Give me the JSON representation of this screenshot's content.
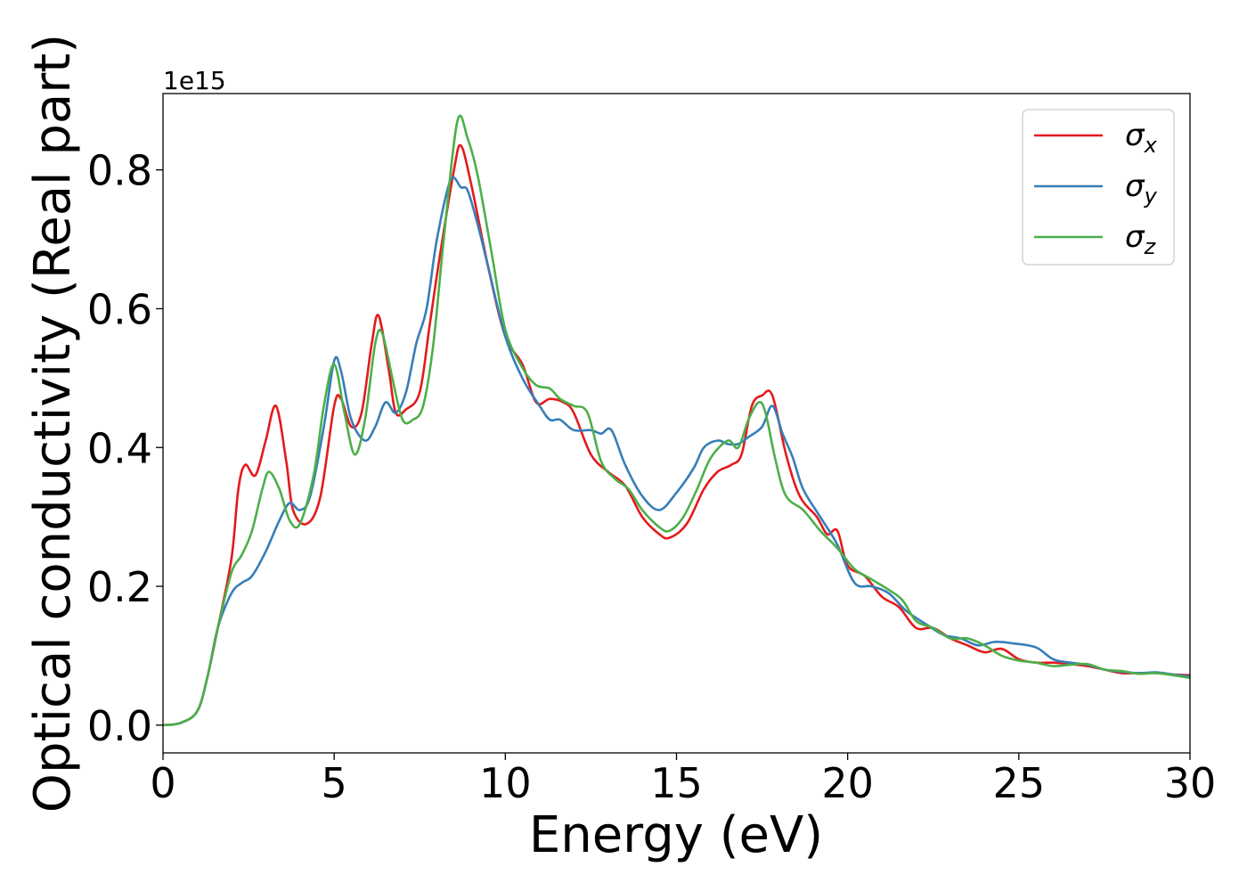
{
  "chart_data": {
    "type": "line",
    "xlabel": "Energy (eV)",
    "ylabel": "Optical conductivity (Real part)",
    "y_offset_label": "1e15",
    "xlim": [
      0,
      30
    ],
    "ylim": [
      -0.04,
      0.91
    ],
    "x_ticks": [
      0,
      5,
      10,
      15,
      20,
      25,
      30
    ],
    "x_tick_labels": [
      "0",
      "5",
      "10",
      "15",
      "20",
      "25",
      "30"
    ],
    "y_ticks": [
      0.0,
      0.2,
      0.4,
      0.6,
      0.8
    ],
    "y_tick_labels": [
      "0.0",
      "0.2",
      "0.4",
      "0.6",
      "0.8"
    ],
    "grid": false,
    "legend_position": "top-right",
    "series": [
      {
        "name": "σx",
        "name_base": "σ",
        "name_sub": "x",
        "color": "#e41a1c",
        "points": [
          [
            0,
            0
          ],
          [
            0.5,
            0.003
          ],
          [
            1,
            0.02
          ],
          [
            1.3,
            0.07
          ],
          [
            1.6,
            0.14
          ],
          [
            2,
            0.24
          ],
          [
            2.2,
            0.34
          ],
          [
            2.4,
            0.375
          ],
          [
            2.7,
            0.36
          ],
          [
            3,
            0.41
          ],
          [
            3.3,
            0.46
          ],
          [
            3.6,
            0.38
          ],
          [
            3.8,
            0.31
          ],
          [
            4.2,
            0.29
          ],
          [
            4.6,
            0.33
          ],
          [
            5,
            0.46
          ],
          [
            5.2,
            0.47
          ],
          [
            5.5,
            0.43
          ],
          [
            5.8,
            0.45
          ],
          [
            6.1,
            0.55
          ],
          [
            6.3,
            0.59
          ],
          [
            6.6,
            0.51
          ],
          [
            6.8,
            0.45
          ],
          [
            7.1,
            0.455
          ],
          [
            7.5,
            0.48
          ],
          [
            7.8,
            0.58
          ],
          [
            8.1,
            0.68
          ],
          [
            8.5,
            0.8
          ],
          [
            8.7,
            0.835
          ],
          [
            9,
            0.78
          ],
          [
            9.5,
            0.66
          ],
          [
            10,
            0.56
          ],
          [
            10.5,
            0.52
          ],
          [
            10.9,
            0.465
          ],
          [
            11.3,
            0.47
          ],
          [
            11.7,
            0.465
          ],
          [
            12,
            0.45
          ],
          [
            12.5,
            0.39
          ],
          [
            13,
            0.365
          ],
          [
            13.5,
            0.345
          ],
          [
            14,
            0.3
          ],
          [
            14.5,
            0.275
          ],
          [
            14.8,
            0.27
          ],
          [
            15.3,
            0.29
          ],
          [
            15.8,
            0.34
          ],
          [
            16.2,
            0.365
          ],
          [
            16.6,
            0.375
          ],
          [
            16.9,
            0.39
          ],
          [
            17.2,
            0.46
          ],
          [
            17.5,
            0.475
          ],
          [
            17.8,
            0.475
          ],
          [
            18.2,
            0.39
          ],
          [
            18.6,
            0.33
          ],
          [
            19.1,
            0.3
          ],
          [
            19.4,
            0.275
          ],
          [
            19.7,
            0.28
          ],
          [
            20,
            0.23
          ],
          [
            20.5,
            0.215
          ],
          [
            21,
            0.185
          ],
          [
            21.5,
            0.17
          ],
          [
            22,
            0.14
          ],
          [
            22.5,
            0.14
          ],
          [
            23,
            0.125
          ],
          [
            23.5,
            0.115
          ],
          [
            24,
            0.105
          ],
          [
            24.5,
            0.11
          ],
          [
            25,
            0.095
          ],
          [
            25.5,
            0.09
          ],
          [
            26,
            0.09
          ],
          [
            26.5,
            0.088
          ],
          [
            27,
            0.085
          ],
          [
            27.5,
            0.08
          ],
          [
            28,
            0.075
          ],
          [
            28.5,
            0.075
          ],
          [
            29,
            0.075
          ],
          [
            29.5,
            0.073
          ],
          [
            30,
            0.072
          ]
        ]
      },
      {
        "name": "σy",
        "name_base": "σ",
        "name_sub": "y",
        "color": "#377eb8",
        "points": [
          [
            0,
            0
          ],
          [
            0.5,
            0.003
          ],
          [
            1,
            0.02
          ],
          [
            1.3,
            0.07
          ],
          [
            1.6,
            0.14
          ],
          [
            2,
            0.19
          ],
          [
            2.3,
            0.205
          ],
          [
            2.6,
            0.215
          ],
          [
            3,
            0.25
          ],
          [
            3.4,
            0.295
          ],
          [
            3.7,
            0.32
          ],
          [
            4,
            0.31
          ],
          [
            4.3,
            0.33
          ],
          [
            4.7,
            0.43
          ],
          [
            5,
            0.525
          ],
          [
            5.2,
            0.51
          ],
          [
            5.5,
            0.44
          ],
          [
            5.9,
            0.41
          ],
          [
            6.2,
            0.43
          ],
          [
            6.5,
            0.465
          ],
          [
            6.8,
            0.45
          ],
          [
            7.1,
            0.48
          ],
          [
            7.4,
            0.55
          ],
          [
            7.7,
            0.6
          ],
          [
            8,
            0.7
          ],
          [
            8.4,
            0.785
          ],
          [
            8.7,
            0.775
          ],
          [
            8.9,
            0.77
          ],
          [
            9.2,
            0.72
          ],
          [
            9.5,
            0.66
          ],
          [
            10,
            0.56
          ],
          [
            10.5,
            0.5
          ],
          [
            11,
            0.46
          ],
          [
            11.3,
            0.44
          ],
          [
            11.6,
            0.44
          ],
          [
            12,
            0.425
          ],
          [
            12.5,
            0.425
          ],
          [
            12.8,
            0.42
          ],
          [
            13.1,
            0.425
          ],
          [
            13.5,
            0.375
          ],
          [
            14,
            0.33
          ],
          [
            14.5,
            0.31
          ],
          [
            15,
            0.335
          ],
          [
            15.5,
            0.37
          ],
          [
            15.8,
            0.4
          ],
          [
            16.2,
            0.41
          ],
          [
            16.5,
            0.405
          ],
          [
            16.8,
            0.405
          ],
          [
            17.1,
            0.415
          ],
          [
            17.5,
            0.43
          ],
          [
            17.8,
            0.46
          ],
          [
            18.1,
            0.42
          ],
          [
            18.4,
            0.385
          ],
          [
            18.7,
            0.34
          ],
          [
            19.2,
            0.3
          ],
          [
            19.7,
            0.26
          ],
          [
            20.2,
            0.205
          ],
          [
            20.7,
            0.2
          ],
          [
            21.2,
            0.19
          ],
          [
            21.7,
            0.165
          ],
          [
            22.3,
            0.145
          ],
          [
            22.8,
            0.13
          ],
          [
            23.3,
            0.125
          ],
          [
            23.8,
            0.115
          ],
          [
            24.3,
            0.12
          ],
          [
            24.8,
            0.118
          ],
          [
            25.5,
            0.112
          ],
          [
            26,
            0.095
          ],
          [
            26.5,
            0.09
          ],
          [
            27,
            0.087
          ],
          [
            27.5,
            0.08
          ],
          [
            28,
            0.077
          ],
          [
            28.5,
            0.075
          ],
          [
            29,
            0.076
          ],
          [
            29.5,
            0.073
          ],
          [
            30,
            0.07
          ]
        ]
      },
      {
        "name": "σz",
        "name_base": "σ",
        "name_sub": "z",
        "color": "#4daf4a",
        "points": [
          [
            0,
            0
          ],
          [
            0.5,
            0.003
          ],
          [
            1,
            0.02
          ],
          [
            1.3,
            0.07
          ],
          [
            1.6,
            0.14
          ],
          [
            2,
            0.22
          ],
          [
            2.3,
            0.245
          ],
          [
            2.6,
            0.28
          ],
          [
            2.9,
            0.34
          ],
          [
            3.1,
            0.365
          ],
          [
            3.4,
            0.34
          ],
          [
            3.7,
            0.295
          ],
          [
            4,
            0.29
          ],
          [
            4.4,
            0.36
          ],
          [
            4.7,
            0.46
          ],
          [
            5,
            0.52
          ],
          [
            5.3,
            0.45
          ],
          [
            5.6,
            0.39
          ],
          [
            5.9,
            0.44
          ],
          [
            6.2,
            0.55
          ],
          [
            6.4,
            0.565
          ],
          [
            6.7,
            0.5
          ],
          [
            7,
            0.44
          ],
          [
            7.3,
            0.44
          ],
          [
            7.6,
            0.46
          ],
          [
            7.9,
            0.55
          ],
          [
            8.2,
            0.7
          ],
          [
            8.6,
            0.87
          ],
          [
            8.9,
            0.845
          ],
          [
            9.2,
            0.79
          ],
          [
            9.6,
            0.68
          ],
          [
            10,
            0.57
          ],
          [
            10.5,
            0.515
          ],
          [
            10.9,
            0.49
          ],
          [
            11.3,
            0.485
          ],
          [
            11.6,
            0.47
          ],
          [
            12,
            0.46
          ],
          [
            12.4,
            0.45
          ],
          [
            12.8,
            0.38
          ],
          [
            13.2,
            0.355
          ],
          [
            13.6,
            0.34
          ],
          [
            14,
            0.31
          ],
          [
            14.5,
            0.285
          ],
          [
            14.8,
            0.28
          ],
          [
            15.2,
            0.3
          ],
          [
            15.6,
            0.34
          ],
          [
            16,
            0.385
          ],
          [
            16.5,
            0.41
          ],
          [
            16.8,
            0.4
          ],
          [
            17.1,
            0.44
          ],
          [
            17.4,
            0.465
          ],
          [
            17.6,
            0.45
          ],
          [
            17.9,
            0.38
          ],
          [
            18.2,
            0.33
          ],
          [
            18.7,
            0.31
          ],
          [
            19.2,
            0.28
          ],
          [
            19.7,
            0.255
          ],
          [
            20.2,
            0.225
          ],
          [
            20.7,
            0.21
          ],
          [
            21.2,
            0.195
          ],
          [
            21.6,
            0.18
          ],
          [
            22,
            0.15
          ],
          [
            22.5,
            0.14
          ],
          [
            23,
            0.125
          ],
          [
            23.5,
            0.125
          ],
          [
            24,
            0.115
          ],
          [
            24.5,
            0.1
          ],
          [
            25,
            0.093
          ],
          [
            25.5,
            0.09
          ],
          [
            26,
            0.085
          ],
          [
            26.5,
            0.087
          ],
          [
            27,
            0.088
          ],
          [
            27.5,
            0.08
          ],
          [
            28,
            0.078
          ],
          [
            28.5,
            0.074
          ],
          [
            29,
            0.075
          ],
          [
            29.5,
            0.072
          ],
          [
            30,
            0.068
          ]
        ]
      }
    ]
  }
}
